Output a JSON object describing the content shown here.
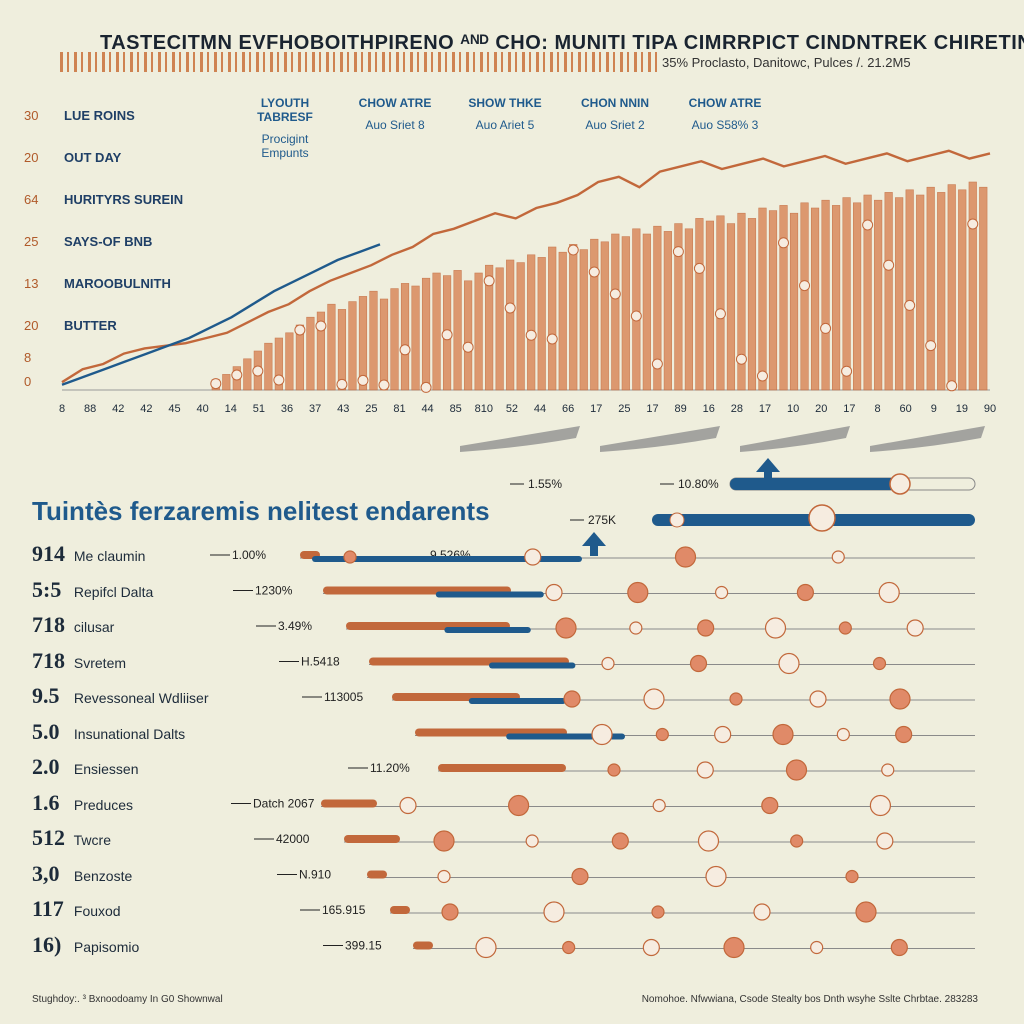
{
  "header": {
    "title": "TASTECITMN EVFHOBOITHPIRENO ᴬᴺᴰ CHO: MUNITI TIPA CIMRRPICT CINDNTREK CHIRETINA",
    "subtitle": "35% Proclasto, Danitowc, Pulces /. 21.2M5"
  },
  "colors": {
    "orange": "#d98a5c",
    "orange_dark": "#c2683b",
    "blue": "#1f5a8c",
    "bg": "#efeedd",
    "grey": "#8a8a8a"
  },
  "legend": [
    {
      "name": "LYOUTH TABRESF",
      "sub": "Procigint Empunts"
    },
    {
      "name": "CHOW ATRE",
      "sub": "Auo Sriet 8"
    },
    {
      "name": "SHOW THKE",
      "sub": "Auo Ariet 5"
    },
    {
      "name": "CHON NNIN",
      "sub": "Auo Sriet 2"
    },
    {
      "name": "CHOW ATRE",
      "sub": "Auo S58% 3"
    }
  ],
  "category_labels": [
    {
      "num": "30",
      "label": "LUE ROINS"
    },
    {
      "num": "20",
      "label": "OUT DAY"
    },
    {
      "num": "64",
      "label": "HURITYRS SUREIN"
    },
    {
      "num": "25",
      "label": "SAYS-OF BNB"
    },
    {
      "num": "13",
      "label": "MAROOBULNITH"
    },
    {
      "num": "20",
      "label": "BUTTER"
    },
    {
      "num": "8",
      "label": ""
    },
    {
      "num": "0",
      "label": ""
    }
  ],
  "chart_data": [
    {
      "type": "bar",
      "title": "TASTECITMN EVFHOBOITHPIRENO CHO: MUNITI TIPA CIMRRPICT CINDNTREK CHIRETINA",
      "xlabel": "",
      "ylabel": "",
      "ylim": [
        0,
        100
      ],
      "x_ticks": [
        "8",
        "88",
        "42",
        "42",
        "45",
        "40",
        "14",
        "51",
        "36",
        "37",
        "43",
        "25",
        "81",
        "44",
        "85",
        "810",
        "52",
        "44",
        "66",
        "17",
        "25",
        "17",
        "89",
        "16",
        "28",
        "17",
        "10",
        "20",
        "17",
        "8",
        "60",
        "9",
        "19",
        "90"
      ],
      "values": [
        4,
        6,
        9,
        12,
        15,
        18,
        20,
        22,
        25,
        28,
        30,
        33,
        31,
        34,
        36,
        38,
        35,
        39,
        41,
        40,
        43,
        45,
        44,
        46,
        42,
        45,
        48,
        47,
        50,
        49,
        52,
        51,
        55,
        53,
        56,
        54,
        58,
        57,
        60,
        59,
        62,
        60,
        63,
        61,
        64,
        62,
        66,
        65,
        67,
        64,
        68,
        66,
        70,
        69,
        71,
        68,
        72,
        70,
        73,
        71,
        74,
        72,
        75,
        73,
        76,
        74,
        77,
        75,
        78,
        76,
        79,
        77,
        80,
        78
      ],
      "series": [
        {
          "name": "Orange line",
          "values": [
            3,
            8,
            10,
            14,
            16,
            17,
            18,
            20,
            22,
            26,
            30,
            33,
            38,
            42,
            45,
            48,
            52,
            55,
            60,
            62,
            65,
            68,
            66,
            70,
            72,
            75,
            80,
            82,
            78,
            84,
            86,
            88,
            85,
            87,
            89,
            86,
            88,
            90,
            87,
            89,
            91,
            88,
            90,
            92,
            89,
            91
          ]
        },
        {
          "name": "Blue line",
          "values": [
            2,
            5,
            8,
            11,
            14,
            17,
            20,
            24,
            28,
            33,
            38,
            42,
            46,
            50,
            53,
            56
          ]
        }
      ]
    },
    {
      "type": "bar",
      "title": "Tuintès ferzaremis nelitest endarents",
      "annotations": [
        "1.55%",
        "10.80%",
        "275K"
      ],
      "categories": [
        "Me claumin",
        "Repifcl Dalta",
        "cilusar",
        "Svretem",
        "Revessoneal Wdliiser",
        "Insunational Dalts",
        "Ensiessen",
        "Preduces",
        "Twcre",
        "Benzoste",
        "Fouxod",
        "Papisomio"
      ],
      "rank": [
        "914",
        "5:5",
        "718",
        "718",
        "9.5",
        "5.0",
        "2.0",
        "1.6",
        "512",
        "3,0",
        "117",
        "16)"
      ],
      "value_labels": [
        "1.00%",
        "1230%",
        "3.49%",
        "H.5418",
        "113005",
        "",
        "11.20%",
        "Datch 2067",
        "42000",
        "N.910",
        "165.915",
        "399.15"
      ],
      "secondary_labels": [
        "9.526%",
        "",
        "",
        "",
        "",
        "",
        "",
        "",
        "",
        "",
        "",
        ""
      ],
      "series": [
        {
          "name": "Orange",
          "values": [
            0,
            28,
            24,
            30,
            18,
            22,
            18,
            6,
            6,
            0,
            0,
            0
          ]
        },
        {
          "name": "Blue",
          "values": [
            50,
            20,
            16,
            16,
            18,
            22,
            0,
            0,
            0,
            0,
            0,
            0
          ]
        }
      ]
    }
  ],
  "section": {
    "title": "Tuintès ferzaremis nelitest endarents"
  },
  "footer": {
    "left": "Stughdoy:. ³ Bxnoodoamy In G0 Shownwal",
    "right": "Nomohoe. Nfwwiana, Csode Stealty bos Dnth wsyhe Sslte Chrbtae. 283283"
  }
}
